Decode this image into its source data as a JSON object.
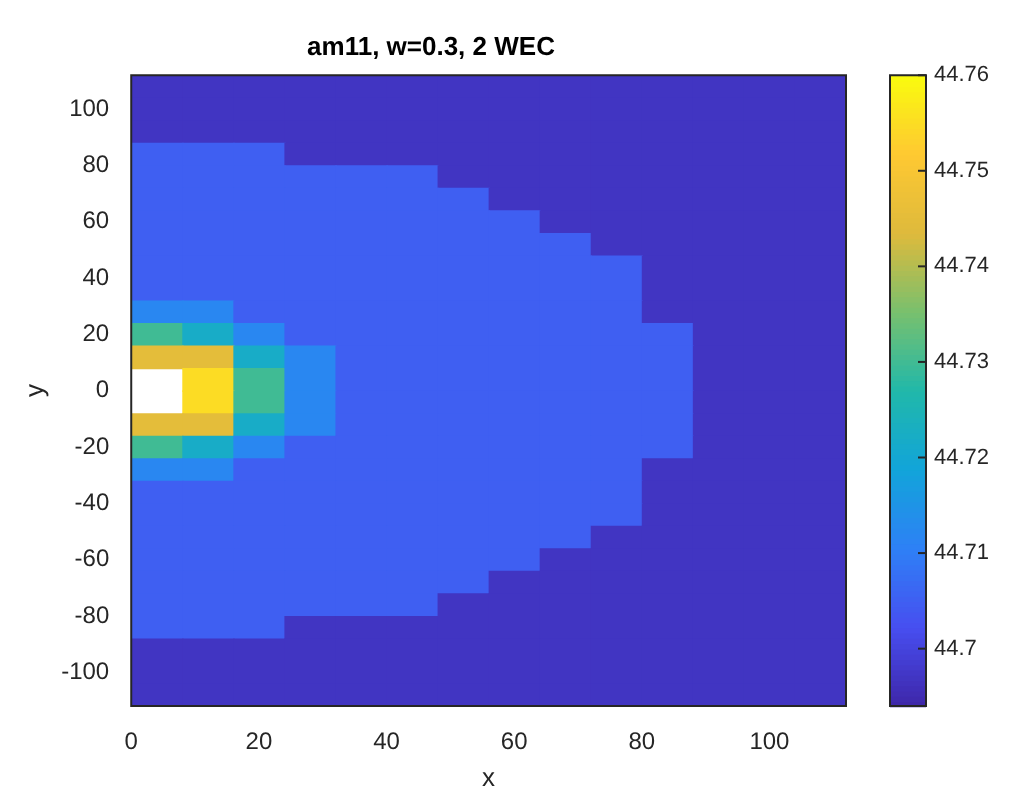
{
  "chart_data": {
    "type": "heatmap",
    "title": "am11, w=0.3, 2 WEC",
    "xlabel": "x",
    "ylabel": "y",
    "x": [
      4,
      12,
      20,
      28,
      36,
      44,
      52,
      60,
      68,
      76,
      84,
      92,
      100,
      108
    ],
    "y": [
      108,
      100,
      92,
      84,
      76,
      68,
      60,
      52,
      44,
      36,
      28,
      20,
      12,
      4,
      -4,
      -12,
      -20,
      -28,
      -36,
      -44,
      -52,
      -60,
      -68,
      -76,
      -84,
      -92,
      -100,
      -108
    ],
    "cells": [
      [
        44.697,
        44.697,
        44.697,
        44.697,
        44.697,
        44.697,
        44.697,
        44.697,
        44.697,
        44.697,
        44.697,
        44.697,
        44.697,
        44.697
      ],
      [
        44.697,
        44.697,
        44.697,
        44.697,
        44.697,
        44.697,
        44.697,
        44.697,
        44.697,
        44.697,
        44.697,
        44.697,
        44.697,
        44.697
      ],
      [
        44.697,
        44.697,
        44.697,
        44.697,
        44.697,
        44.697,
        44.697,
        44.697,
        44.697,
        44.697,
        44.697,
        44.697,
        44.697,
        44.697
      ],
      [
        44.705,
        44.705,
        44.705,
        44.697,
        44.697,
        44.697,
        44.697,
        44.697,
        44.697,
        44.697,
        44.697,
        44.697,
        44.697,
        44.697
      ],
      [
        44.705,
        44.705,
        44.705,
        44.705,
        44.705,
        44.705,
        44.697,
        44.697,
        44.697,
        44.697,
        44.697,
        44.697,
        44.697,
        44.697
      ],
      [
        44.705,
        44.705,
        44.705,
        44.705,
        44.705,
        44.705,
        44.705,
        44.697,
        44.697,
        44.697,
        44.697,
        44.697,
        44.697,
        44.697
      ],
      [
        44.705,
        44.705,
        44.705,
        44.705,
        44.705,
        44.705,
        44.705,
        44.705,
        44.697,
        44.697,
        44.697,
        44.697,
        44.697,
        44.697
      ],
      [
        44.705,
        44.705,
        44.705,
        44.705,
        44.705,
        44.705,
        44.705,
        44.705,
        44.705,
        44.697,
        44.697,
        44.697,
        44.697,
        44.697
      ],
      [
        44.705,
        44.705,
        44.705,
        44.705,
        44.705,
        44.705,
        44.705,
        44.705,
        44.705,
        44.705,
        44.697,
        44.697,
        44.697,
        44.697
      ],
      [
        44.705,
        44.705,
        44.705,
        44.705,
        44.705,
        44.705,
        44.705,
        44.705,
        44.705,
        44.705,
        44.697,
        44.697,
        44.697,
        44.697
      ],
      [
        44.712,
        44.712,
        44.705,
        44.705,
        44.705,
        44.705,
        44.705,
        44.705,
        44.705,
        44.705,
        44.697,
        44.697,
        44.697,
        44.697
      ],
      [
        44.73,
        44.722,
        44.712,
        44.705,
        44.705,
        44.705,
        44.705,
        44.705,
        44.705,
        44.705,
        44.705,
        44.697,
        44.697,
        44.697
      ],
      [
        44.745,
        44.745,
        44.722,
        44.712,
        44.705,
        44.705,
        44.705,
        44.705,
        44.705,
        44.705,
        44.705,
        44.697,
        44.697,
        44.697
      ],
      [
        null,
        44.755,
        44.73,
        44.712,
        44.705,
        44.705,
        44.705,
        44.705,
        44.705,
        44.705,
        44.705,
        44.697,
        44.697,
        44.697
      ],
      [
        null,
        44.755,
        44.73,
        44.712,
        44.705,
        44.705,
        44.705,
        44.705,
        44.705,
        44.705,
        44.705,
        44.697,
        44.697,
        44.697
      ],
      [
        44.745,
        44.745,
        44.722,
        44.712,
        44.705,
        44.705,
        44.705,
        44.705,
        44.705,
        44.705,
        44.705,
        44.697,
        44.697,
        44.697
      ],
      [
        44.73,
        44.722,
        44.712,
        44.705,
        44.705,
        44.705,
        44.705,
        44.705,
        44.705,
        44.705,
        44.705,
        44.697,
        44.697,
        44.697
      ],
      [
        44.712,
        44.712,
        44.705,
        44.705,
        44.705,
        44.705,
        44.705,
        44.705,
        44.705,
        44.705,
        44.697,
        44.697,
        44.697,
        44.697
      ],
      [
        44.705,
        44.705,
        44.705,
        44.705,
        44.705,
        44.705,
        44.705,
        44.705,
        44.705,
        44.705,
        44.697,
        44.697,
        44.697,
        44.697
      ],
      [
        44.705,
        44.705,
        44.705,
        44.705,
        44.705,
        44.705,
        44.705,
        44.705,
        44.705,
        44.705,
        44.697,
        44.697,
        44.697,
        44.697
      ],
      [
        44.705,
        44.705,
        44.705,
        44.705,
        44.705,
        44.705,
        44.705,
        44.705,
        44.705,
        44.697,
        44.697,
        44.697,
        44.697,
        44.697
      ],
      [
        44.705,
        44.705,
        44.705,
        44.705,
        44.705,
        44.705,
        44.705,
        44.705,
        44.697,
        44.697,
        44.697,
        44.697,
        44.697,
        44.697
      ],
      [
        44.705,
        44.705,
        44.705,
        44.705,
        44.705,
        44.705,
        44.705,
        44.697,
        44.697,
        44.697,
        44.697,
        44.697,
        44.697,
        44.697
      ],
      [
        44.705,
        44.705,
        44.705,
        44.705,
        44.705,
        44.705,
        44.697,
        44.697,
        44.697,
        44.697,
        44.697,
        44.697,
        44.697,
        44.697
      ],
      [
        44.705,
        44.705,
        44.705,
        44.697,
        44.697,
        44.697,
        44.697,
        44.697,
        44.697,
        44.697,
        44.697,
        44.697,
        44.697,
        44.697
      ],
      [
        44.697,
        44.697,
        44.697,
        44.697,
        44.697,
        44.697,
        44.697,
        44.697,
        44.697,
        44.697,
        44.697,
        44.697,
        44.697,
        44.697
      ],
      [
        44.697,
        44.697,
        44.697,
        44.697,
        44.697,
        44.697,
        44.697,
        44.697,
        44.697,
        44.697,
        44.697,
        44.697,
        44.697,
        44.697
      ],
      [
        44.697,
        44.697,
        44.697,
        44.697,
        44.697,
        44.697,
        44.697,
        44.697,
        44.697,
        44.697,
        44.697,
        44.697,
        44.697,
        44.697
      ]
    ],
    "xlim": [
      0,
      112
    ],
    "xticks": [
      0,
      20,
      40,
      60,
      80,
      100
    ],
    "ylim": [
      -112,
      112
    ],
    "yticks": [
      -100,
      -80,
      -60,
      -40,
      -20,
      0,
      20,
      40,
      60,
      80,
      100
    ],
    "clim": [
      44.694,
      44.76
    ],
    "cticks": [
      44.7,
      44.71,
      44.72,
      44.73,
      44.74,
      44.75,
      44.76
    ],
    "grid": false,
    "legend": false
  }
}
